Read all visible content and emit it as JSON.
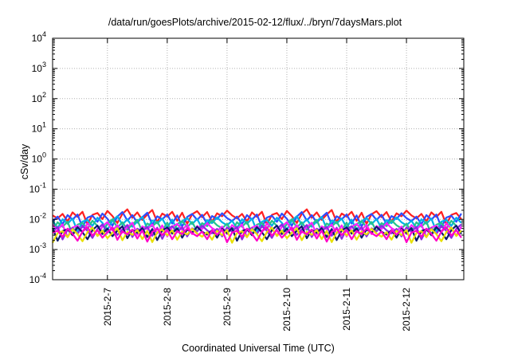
{
  "chart_data": {
    "type": "line",
    "title": "/data/run/goesPlots/archive/2015-02-12/flux/../bryn/7daysMars.plot",
    "xlabel": "Coordinated Universal Time (UTC)",
    "ylabel": "cSv/day",
    "yscale": "log",
    "ylim": [
      0.0001,
      10000
    ],
    "xlim": [
      "2015-02-06 02:00",
      "2015-02-12 23:00"
    ],
    "y_ticks": [
      {
        "base": "10",
        "exp": "4"
      },
      {
        "base": "10",
        "exp": "3"
      },
      {
        "base": "10",
        "exp": "2"
      },
      {
        "base": "10",
        "exp": "1"
      },
      {
        "base": "10",
        "exp": "0"
      },
      {
        "base": "10",
        "exp": "-1"
      },
      {
        "base": "10",
        "exp": "-2"
      },
      {
        "base": "10",
        "exp": "-3"
      },
      {
        "base": "10",
        "exp": "-4"
      }
    ],
    "x_ticks": [
      "2015-2-7",
      "2015-2-8",
      "2015-2-9",
      "2015-2-10",
      "2015-2-11",
      "2015-2-12"
    ],
    "grid": true,
    "legend": "none",
    "x_step_hours": 2,
    "series": [
      {
        "color": "#ff2020",
        "base": 0.0135,
        "offset": 0.0
      },
      {
        "color": "#2e4bff",
        "base": 0.0115,
        "offset": -0.02
      },
      {
        "color": "#00b0e6",
        "base": 0.0092,
        "offset": -0.06
      },
      {
        "color": "#27c28a",
        "base": 0.0058,
        "offset": 0.04
      },
      {
        "color": "#ff20ff",
        "base": 0.0049,
        "offset": 0.02
      },
      {
        "color": "#8a2be2",
        "base": 0.0043,
        "offset": 0.0
      },
      {
        "color": "#0d1a6e",
        "base": 0.004,
        "offset": -0.01
      },
      {
        "color": "#e8e000",
        "base": 0.0036,
        "offset": -0.03
      },
      {
        "color": "#ff00c8",
        "base": 0.0031,
        "offset": 0.05
      }
    ],
    "variation_pattern": [
      0.0,
      -0.1,
      0.05,
      -0.2,
      0.1,
      -0.05,
      0.12,
      -0.3,
      0.02,
      0.08,
      -0.12,
      0.15,
      -0.02,
      -0.25,
      0.05,
      0.2,
      -0.08,
      0.1,
      -0.15,
      0.03,
      0.18,
      -0.22,
      0.06,
      -0.04,
      0.12,
      -0.18,
      0.09,
      -0.28,
      0.04,
      0.14,
      -0.06,
      0.11,
      -0.2,
      0.07,
      -0.03,
      0.16
    ]
  }
}
